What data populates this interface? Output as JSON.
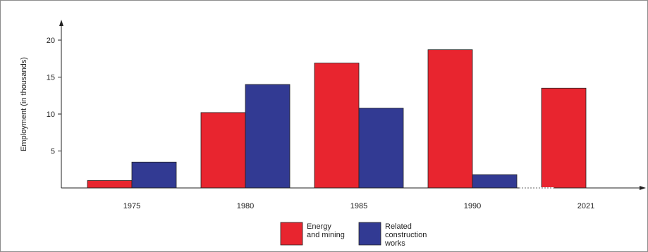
{
  "chart_data": {
    "type": "bar",
    "categories": [
      "1975",
      "1980",
      "1985",
      "1990",
      "2021"
    ],
    "series": [
      {
        "name": "Energy\nand mining",
        "values": [
          1,
          10.2,
          16.9,
          18.7,
          13.5
        ]
      },
      {
        "name": "Related\nconstruction\nworks",
        "values": [
          3.5,
          14.0,
          10.8,
          1.8,
          null
        ]
      }
    ],
    "ylabel": "Employment (in thousands)",
    "yticks": [
      5,
      10,
      15,
      20
    ],
    "ylim": [
      0,
      22
    ],
    "grid": false,
    "legend_position": "bottom-center",
    "note": "",
    "colors": {
      "energy": "#e8252f",
      "construction": "#323a93",
      "axis": "#222222"
    }
  }
}
